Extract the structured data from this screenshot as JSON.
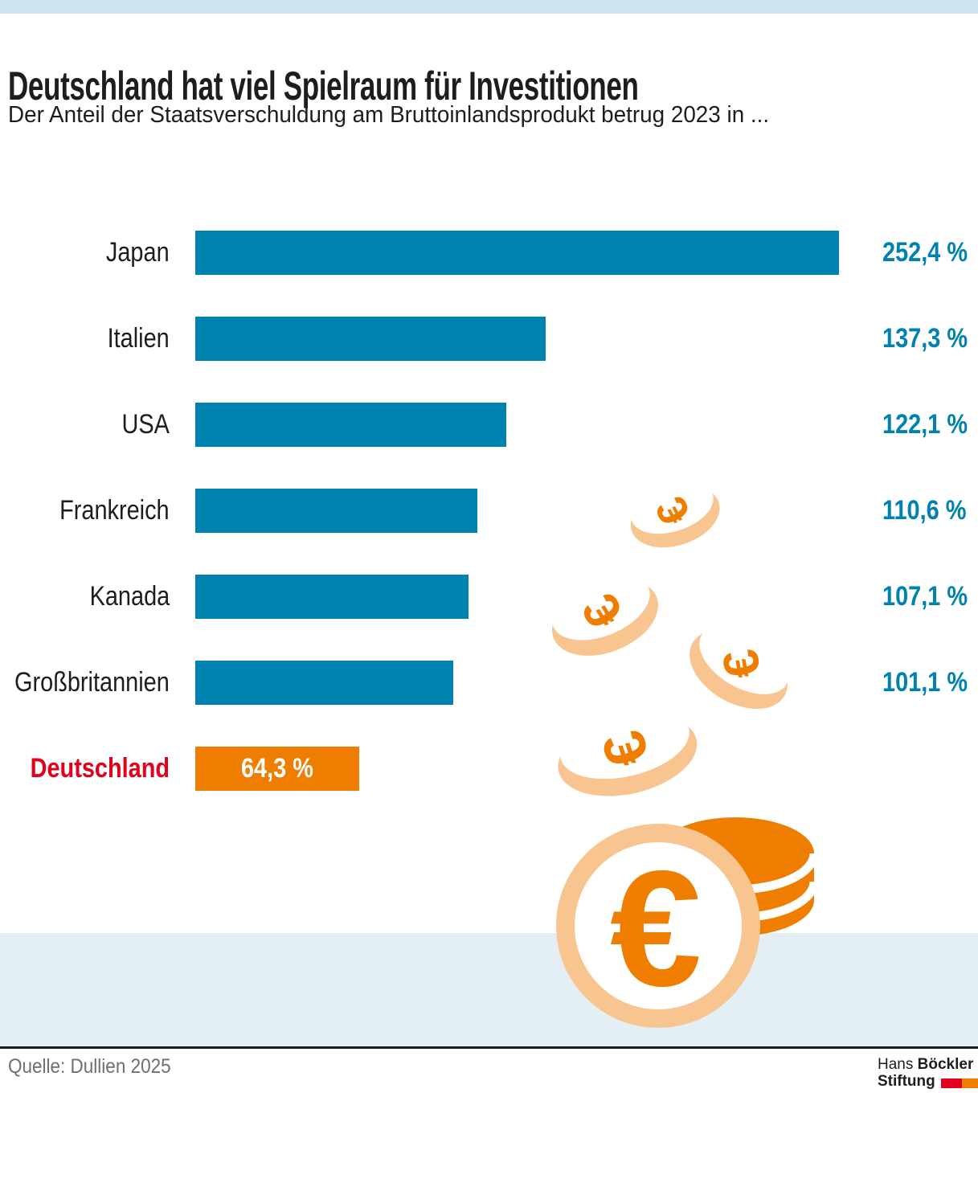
{
  "header": {
    "title": "Deutschland hat viel Spielraum für Investitionen",
    "subtitle": "Der Anteil der Staatsverschuldung am Bruttoinlandsprodukt betrug 2023 in ..."
  },
  "chart_data": {
    "type": "bar",
    "orientation": "horizontal",
    "year": "2023",
    "value_unit": "Prozent des Bruttoinlandsprodukts",
    "categories": [
      "Japan",
      "Italien",
      "USA",
      "Frankreich",
      "Kanada",
      "Großbritannien",
      "Deutschland"
    ],
    "values": [
      252.4,
      137.3,
      122.1,
      110.6,
      107.1,
      101.1,
      64.3
    ],
    "xlim": [
      0,
      252.4
    ],
    "grid": false,
    "legend": false,
    "bar_color": "#0082B0",
    "highlight_color": "#EF7D00",
    "highlight_label_color": "#E2001A",
    "rows": [
      {
        "country": "Japan",
        "value": 252.4,
        "display": "252,4 %"
      },
      {
        "country": "Italien",
        "value": 137.3,
        "display": "137,3 %"
      },
      {
        "country": "USA",
        "value": 122.1,
        "display": "122,1 %"
      },
      {
        "country": "Frankreich",
        "value": 110.6,
        "display": "110,6 %"
      },
      {
        "country": "Kanada",
        "value": 107.1,
        "display": "107,1 %"
      },
      {
        "country": "Großbritannien",
        "value": 101.1,
        "display": "101,1 %"
      },
      {
        "country": "Deutschland",
        "value": 64.3,
        "display": "64,3 %",
        "highlight": true
      }
    ]
  },
  "illustration": {
    "description": "Fallende Euro-Münzen und Münzstapel",
    "coin_rim_color": "#F8C48F",
    "euro_symbol_color": "#EF7D00",
    "euro_symbol": "€"
  },
  "footer": {
    "source": "Quelle: Dullien 2025",
    "logo": {
      "line1_regular": "Hans",
      "line1_bold": "Böckler",
      "line2_bold": "Stiftung",
      "square1_color": "#E2001A",
      "square2_color": "#EF7D00"
    }
  },
  "colors": {
    "top_band": "#CEE5F0",
    "bottom_band": "#E3EFF5",
    "text": "#1D1D1B",
    "source_text": "#6F6F6E",
    "rule": "#1D1D1B"
  }
}
